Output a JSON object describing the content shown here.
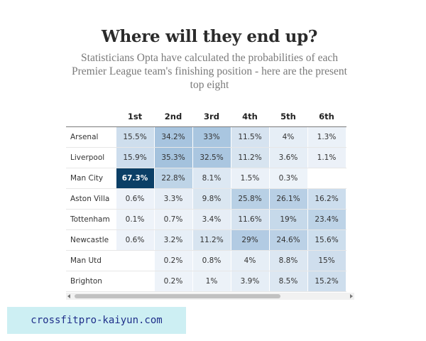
{
  "header": {
    "title": "Where will they end up?",
    "subtitle": "Statisticians Opta have calculated the probabilities of each Premier League team's finishing position - here are the present top eight"
  },
  "chart_data": {
    "type": "table",
    "title": "Where will they end up?",
    "columns": [
      "",
      "1st",
      "2nd",
      "3rd",
      "4th",
      "5th",
      "6th"
    ],
    "rows": [
      {
        "team": "Arsenal",
        "values": [
          15.5,
          34.2,
          33,
          11.5,
          4,
          1.3
        ],
        "labels": [
          "15.5%",
          "34.2%",
          "33%",
          "11.5%",
          "4%",
          "1.3%"
        ]
      },
      {
        "team": "Liverpool",
        "values": [
          15.9,
          35.3,
          32.5,
          11.2,
          3.6,
          1.1
        ],
        "labels": [
          "15.9%",
          "35.3%",
          "32.5%",
          "11.2%",
          "3.6%",
          "1.1%"
        ]
      },
      {
        "team": "Man City",
        "values": [
          67.3,
          22.8,
          8.1,
          1.5,
          0.3,
          null
        ],
        "labels": [
          "67.3%",
          "22.8%",
          "8.1%",
          "1.5%",
          "0.3%",
          ""
        ]
      },
      {
        "team": "Aston Villa",
        "values": [
          0.6,
          3.3,
          9.8,
          25.8,
          26.1,
          16.2
        ],
        "labels": [
          "0.6%",
          "3.3%",
          "9.8%",
          "25.8%",
          "26.1%",
          "16.2%"
        ]
      },
      {
        "team": "Tottenham",
        "values": [
          0.1,
          0.7,
          3.4,
          11.6,
          19,
          23.4
        ],
        "labels": [
          "0.1%",
          "0.7%",
          "3.4%",
          "11.6%",
          "19%",
          "23.4%"
        ]
      },
      {
        "team": "Newcastle",
        "values": [
          0.6,
          3.2,
          11.2,
          29,
          24.6,
          15.6
        ],
        "labels": [
          "0.6%",
          "3.2%",
          "11.2%",
          "29%",
          "24.6%",
          "15.6%"
        ]
      },
      {
        "team": "Man Utd",
        "values": [
          null,
          0.2,
          0.8,
          4,
          8.8,
          15
        ],
        "labels": [
          "",
          "0.2%",
          "0.8%",
          "4%",
          "8.8%",
          "15%"
        ]
      },
      {
        "team": "Brighton",
        "values": [
          null,
          0.2,
          1,
          3.9,
          8.5,
          15.2
        ],
        "labels": [
          "",
          "0.2%",
          "1%",
          "3.9%",
          "8.5%",
          "15.2%"
        ]
      }
    ],
    "color_scale": {
      "low": "#eef3f9",
      "mid": "#a5c3de",
      "high": "#0b3f66"
    }
  },
  "watermark": {
    "text": "crossfitpro-kaiyun.com"
  }
}
